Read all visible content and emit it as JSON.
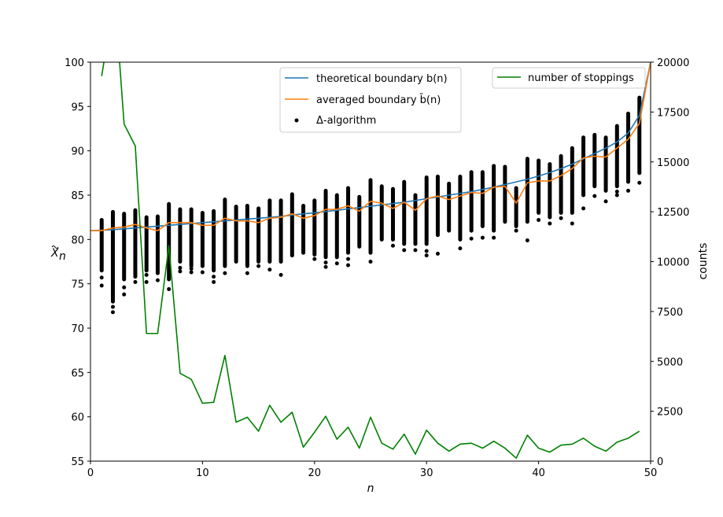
{
  "chart_data": {
    "type": "line",
    "xlabel": "n",
    "ylabel_left": "X̃n",
    "ylabel_left_base": "X",
    "ylabel_left_sub": "n",
    "ylabel_right": "counts",
    "xlim": [
      0,
      50
    ],
    "ylim_left": [
      55,
      100
    ],
    "ylim_right": [
      0,
      20000
    ],
    "x_ticks": [
      "0",
      "10",
      "20",
      "30",
      "40",
      "50"
    ],
    "y_left_ticks": [
      "55",
      "60",
      "65",
      "70",
      "75",
      "80",
      "85",
      "90",
      "95",
      "100"
    ],
    "y_right_ticks": [
      "0",
      "2500",
      "5000",
      "7500",
      "10000",
      "12500",
      "15000",
      "17500",
      "20000"
    ],
    "grid": false,
    "legend_left": {
      "placement": "upper-center",
      "entries": [
        {
          "label": "theoretical boundary b(n)",
          "kind": "line",
          "color": "#1f77b4"
        },
        {
          "label": "averaged boundary b̄(n)",
          "kind": "line",
          "color": "#ff7f0e"
        },
        {
          "label": "Δ-algorithm",
          "kind": "dot",
          "color": "#000000"
        }
      ]
    },
    "legend_right": {
      "placement": "top-right",
      "entries": [
        {
          "label": "number of stoppings",
          "kind": "line",
          "color": "#008000"
        }
      ]
    },
    "series": [
      {
        "name": "theoretical boundary b(n)",
        "axis": "left",
        "color": "#1f77b4",
        "x": [
          0,
          1,
          2,
          3,
          4,
          5,
          6,
          7,
          8,
          9,
          10,
          11,
          12,
          13,
          14,
          15,
          16,
          17,
          18,
          19,
          20,
          21,
          22,
          23,
          24,
          25,
          26,
          27,
          28,
          29,
          30,
          31,
          32,
          33,
          34,
          35,
          36,
          37,
          38,
          39,
          40,
          41,
          42,
          43,
          44,
          45,
          46,
          47,
          48,
          49,
          50
        ],
        "values": [
          81.0,
          81.05,
          81.1,
          81.2,
          81.3,
          81.4,
          81.5,
          81.6,
          81.7,
          81.8,
          81.9,
          82.0,
          82.1,
          82.2,
          82.3,
          82.4,
          82.5,
          82.6,
          82.75,
          82.9,
          83.0,
          83.15,
          83.3,
          83.45,
          83.6,
          83.75,
          83.9,
          84.05,
          84.2,
          84.4,
          84.6,
          84.8,
          85.0,
          85.2,
          85.4,
          85.65,
          85.9,
          86.2,
          86.5,
          86.8,
          87.15,
          87.55,
          88.0,
          88.5,
          89.1,
          89.7,
          90.3,
          91.0,
          92.0,
          94.0,
          100.0
        ]
      },
      {
        "name": "averaged boundary b̄(n)",
        "axis": "left",
        "color": "#ff7f0e",
        "x": [
          0,
          1,
          2,
          3,
          4,
          5,
          6,
          7,
          8,
          9,
          10,
          11,
          12,
          13,
          14,
          15,
          16,
          17,
          18,
          19,
          20,
          21,
          22,
          23,
          24,
          25,
          26,
          27,
          28,
          29,
          30,
          31,
          32,
          33,
          34,
          35,
          36,
          37,
          38,
          39,
          40,
          41,
          42,
          43,
          44,
          45,
          46,
          47,
          48,
          49,
          50
        ],
        "values": [
          81.0,
          81.0,
          81.3,
          81.4,
          81.7,
          81.3,
          81.0,
          81.9,
          81.9,
          81.9,
          81.6,
          81.6,
          82.4,
          82.1,
          82.1,
          81.9,
          82.4,
          82.5,
          82.9,
          82.4,
          82.7,
          83.4,
          83.4,
          83.8,
          83.2,
          84.3,
          84.1,
          83.5,
          84.2,
          83.3,
          84.6,
          84.9,
          84.5,
          84.9,
          85.3,
          85.2,
          85.9,
          86.0,
          84.1,
          86.4,
          86.6,
          86.6,
          87.2,
          88.0,
          89.2,
          89.4,
          89.3,
          90.3,
          91.3,
          93.1,
          100.0
        ]
      },
      {
        "name": "number of stoppings",
        "axis": "right",
        "color": "#008000",
        "x": [
          1,
          1.2,
          1.5,
          2,
          2.6,
          3,
          4,
          5,
          6,
          7,
          8,
          9,
          10,
          11,
          12,
          13,
          14,
          15,
          16,
          17,
          18,
          19,
          20,
          21,
          22,
          23,
          24,
          25,
          26,
          27,
          28,
          29,
          30,
          31,
          32,
          33,
          34,
          35,
          36,
          37,
          38,
          39,
          40,
          41,
          42,
          43,
          44,
          45,
          46,
          47,
          48,
          49
        ],
        "values": [
          19300,
          20000,
          22000,
          25000,
          20000,
          16900,
          15800,
          6400,
          6400,
          10800,
          4400,
          4100,
          2900,
          2950,
          5300,
          1950,
          2200,
          1500,
          2800,
          1950,
          2450,
          700,
          1450,
          2250,
          1100,
          1700,
          650,
          2200,
          900,
          600,
          1350,
          350,
          1550,
          900,
          500,
          850,
          900,
          650,
          1000,
          650,
          150,
          1300,
          650,
          450,
          800,
          850,
          1150,
          750,
          500,
          950,
          1150,
          1500
        ]
      }
    ],
    "scatter": {
      "name": "Δ-algorithm",
      "axis": "left",
      "color": "#000000",
      "columns": [
        {
          "x": 1,
          "top": 82.2,
          "bottom": 76.5,
          "outliers": [
            75.7,
            74.8
          ]
        },
        {
          "x": 2,
          "top": 83.1,
          "bottom": 73.0,
          "outliers": [
            72.4,
            71.8
          ]
        },
        {
          "x": 3,
          "top": 82.9,
          "bottom": 75.5,
          "outliers": [
            74.6,
            73.8
          ]
        },
        {
          "x": 4,
          "top": 83.3,
          "bottom": 75.8,
          "outliers": [
            75.2
          ]
        },
        {
          "x": 5,
          "top": 82.5,
          "bottom": 76.5,
          "outliers": [
            76.0,
            75.2
          ]
        },
        {
          "x": 6,
          "top": 82.6,
          "bottom": 76.2,
          "outliers": [
            75.4
          ]
        },
        {
          "x": 7,
          "top": 84.0,
          "bottom": 75.5,
          "outliers": [
            74.4
          ]
        },
        {
          "x": 8,
          "top": 83.4,
          "bottom": 77.5,
          "outliers": [
            76.8,
            76.4
          ]
        },
        {
          "x": 9,
          "top": 83.4,
          "bottom": 77.0,
          "outliers": [
            76.7,
            76.3
          ]
        },
        {
          "x": 10,
          "top": 83.0,
          "bottom": 77.0,
          "outliers": [
            76.3
          ]
        },
        {
          "x": 11,
          "top": 83.2,
          "bottom": 76.5,
          "outliers": [
            75.8,
            75.2
          ]
        },
        {
          "x": 12,
          "top": 84.5,
          "bottom": 77.0,
          "outliers": [
            76.2
          ]
        },
        {
          "x": 13,
          "top": 83.7,
          "bottom": 77.5,
          "outliers": []
        },
        {
          "x": 14,
          "top": 83.8,
          "bottom": 77.0,
          "outliers": [
            76.2
          ]
        },
        {
          "x": 15,
          "top": 83.5,
          "bottom": 77.5,
          "outliers": [
            77.0
          ]
        },
        {
          "x": 16,
          "top": 84.4,
          "bottom": 77.5,
          "outliers": [
            76.6
          ]
        },
        {
          "x": 17,
          "top": 84.4,
          "bottom": 77.5,
          "outliers": [
            76.0
          ]
        },
        {
          "x": 18,
          "top": 85.1,
          "bottom": 78.2,
          "outliers": []
        },
        {
          "x": 19,
          "top": 83.8,
          "bottom": 78.5,
          "outliers": []
        },
        {
          "x": 20,
          "top": 84.4,
          "bottom": 78.3,
          "outliers": [
            77.8
          ]
        },
        {
          "x": 21,
          "top": 85.5,
          "bottom": 78.0,
          "outliers": [
            77.4,
            76.9
          ]
        },
        {
          "x": 22,
          "top": 85.0,
          "bottom": 78.0,
          "outliers": [
            77.3
          ]
        },
        {
          "x": 23,
          "top": 85.8,
          "bottom": 78.5,
          "outliers": [
            77.8,
            77.1
          ]
        },
        {
          "x": 24,
          "top": 84.8,
          "bottom": 79.2,
          "outliers": []
        },
        {
          "x": 25,
          "top": 86.7,
          "bottom": 78.5,
          "outliers": [
            77.5
          ]
        },
        {
          "x": 26,
          "top": 86.0,
          "bottom": 80.0,
          "outliers": []
        },
        {
          "x": 27,
          "top": 85.7,
          "bottom": 80.0,
          "outliers": [
            79.3
          ]
        },
        {
          "x": 28,
          "top": 86.5,
          "bottom": 79.5,
          "outliers": [
            78.8
          ]
        },
        {
          "x": 29,
          "top": 85.0,
          "bottom": 79.5,
          "outliers": [
            78.8
          ]
        },
        {
          "x": 30,
          "top": 87.0,
          "bottom": 79.5,
          "outliers": [
            78.7,
            78.2
          ]
        },
        {
          "x": 31,
          "top": 87.1,
          "bottom": 80.5,
          "outliers": [
            78.4
          ]
        },
        {
          "x": 32,
          "top": 86.3,
          "bottom": 81.0,
          "outliers": []
        },
        {
          "x": 33,
          "top": 87.1,
          "bottom": 80.0,
          "outliers": [
            79.0
          ]
        },
        {
          "x": 34,
          "top": 87.6,
          "bottom": 81.0,
          "outliers": [
            80.1
          ]
        },
        {
          "x": 35,
          "top": 87.6,
          "bottom": 81.5,
          "outliers": [
            80.2
          ]
        },
        {
          "x": 36,
          "top": 88.3,
          "bottom": 81.0,
          "outliers": [
            80.2
          ]
        },
        {
          "x": 37,
          "top": 88.2,
          "bottom": 82.0,
          "outliers": []
        },
        {
          "x": 38,
          "top": 85.8,
          "bottom": 81.5,
          "outliers": [
            81.0
          ]
        },
        {
          "x": 39,
          "top": 89.1,
          "bottom": 82.0,
          "outliers": [
            79.9
          ]
        },
        {
          "x": 40,
          "top": 88.9,
          "bottom": 83.0,
          "outliers": [
            82.2
          ]
        },
        {
          "x": 41,
          "top": 88.5,
          "bottom": 82.5,
          "outliers": [
            81.8
          ]
        },
        {
          "x": 42,
          "top": 89.4,
          "bottom": 83.0,
          "outliers": [
            82.4
          ]
        },
        {
          "x": 43,
          "top": 90.3,
          "bottom": 83.0,
          "outliers": [
            81.8
          ]
        },
        {
          "x": 44,
          "top": 91.5,
          "bottom": 85.0,
          "outliers": [
            83.5
          ]
        },
        {
          "x": 45,
          "top": 91.8,
          "bottom": 86.0,
          "outliers": [
            84.9
          ]
        },
        {
          "x": 46,
          "top": 91.5,
          "bottom": 85.5,
          "outliers": [
            84.3
          ]
        },
        {
          "x": 47,
          "top": 92.8,
          "bottom": 86.0,
          "outliers": [
            85.4,
            85.0
          ]
        },
        {
          "x": 48,
          "top": 94.2,
          "bottom": 86.5,
          "outliers": [
            85.5
          ]
        },
        {
          "x": 49,
          "top": 96.0,
          "bottom": 87.5,
          "outliers": [
            86.4
          ]
        }
      ]
    }
  }
}
